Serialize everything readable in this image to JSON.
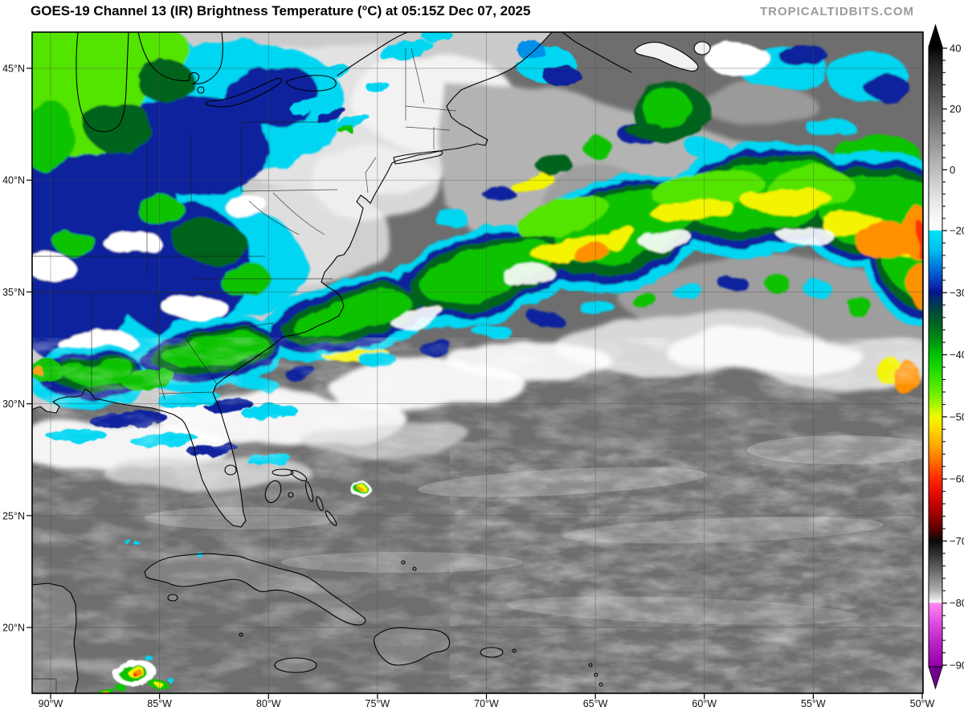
{
  "header": {
    "title": "GOES-19 Channel 13 (IR) Brightness Temperature (°C) at 05:15Z Dec 07, 2025",
    "watermark": "TROPICALTIDBITS.COM"
  },
  "map": {
    "lat_labels": [
      "45°N",
      "40°N",
      "35°N",
      "30°N",
      "25°N",
      "20°N"
    ],
    "lon_labels": [
      "90°W",
      "85°W",
      "80°W",
      "75°W",
      "70°W",
      "65°W",
      "60°W",
      "55°W",
      "50°W"
    ]
  },
  "colorbar": {
    "major_tick_labels": [
      "40",
      "20",
      "0",
      "−20",
      "−30",
      "−40",
      "−50",
      "−60",
      "−70",
      "−80",
      "−90"
    ],
    "major_tick_values": [
      40,
      20,
      0,
      -20,
      -30,
      -40,
      -50,
      -60,
      -70,
      -80,
      -90
    ],
    "gradient": [
      [
        40.5,
        "#000000"
      ],
      [
        36,
        "#1f1f1f"
      ],
      [
        30,
        "#3a3a3a"
      ],
      [
        25,
        "#4f4f4f"
      ],
      [
        20,
        "#646464"
      ],
      [
        15,
        "#7a7a7a"
      ],
      [
        10,
        "#909090"
      ],
      [
        5,
        "#a6a6a6"
      ],
      [
        0,
        "#bcbcbc"
      ],
      [
        -5,
        "#d2d2d2"
      ],
      [
        -10,
        "#e6e6e6"
      ],
      [
        -15,
        "#f5f5f5"
      ],
      [
        -19.9,
        "#ffffff"
      ],
      [
        -20,
        "#00e4f6"
      ],
      [
        -23,
        "#00c0f0"
      ],
      [
        -26,
        "#0072dc"
      ],
      [
        -29,
        "#0a28aa"
      ],
      [
        -30,
        "#061488"
      ],
      [
        -31,
        "#002c6a"
      ],
      [
        -33,
        "#004a3c"
      ],
      [
        -35,
        "#006420"
      ],
      [
        -38,
        "#009612"
      ],
      [
        -40,
        "#00c400"
      ],
      [
        -43,
        "#2ae000"
      ],
      [
        -46,
        "#66ee00"
      ],
      [
        -48,
        "#a6f600"
      ],
      [
        -50,
        "#f0fa00"
      ],
      [
        -52,
        "#ffd800"
      ],
      [
        -55,
        "#ffa000"
      ],
      [
        -57,
        "#ff7000"
      ],
      [
        -60,
        "#ff2800"
      ],
      [
        -62,
        "#e60e00"
      ],
      [
        -65,
        "#af0000"
      ],
      [
        -68,
        "#5c0000"
      ],
      [
        -70,
        "#0a0a0a"
      ],
      [
        -72,
        "#2e2e2e"
      ],
      [
        -75,
        "#6e6e6e"
      ],
      [
        -78,
        "#b0b0b0"
      ],
      [
        -79.9,
        "#f8f8f8"
      ],
      [
        -80,
        "#ff86f2"
      ],
      [
        -83,
        "#e050e0"
      ],
      [
        -86,
        "#bc28c8"
      ],
      [
        -90,
        "#9600aa"
      ],
      [
        -90.3,
        "#7a0090"
      ]
    ]
  },
  "palette": {
    "ocean_warm": "#6e6e6e",
    "ocean_cool": "#b3b3b3",
    "ocean_mid": "#9a9a9a",
    "land_cold": "#cbcbcb",
    "land_lighter": "#e2e2e2",
    "land_white": "#f2f2f2",
    "land_florida": "#8f8f8f",
    "land_tropics": "#818181",
    "cloud_white": "#ffffff",
    "cloud_gray": "#9e9e9e",
    "cloud_light": "#d8d8d8",
    "cyan": "#00d6f2",
    "blue": "#0090e8",
    "navy": "#07239c",
    "green_dark": "#00641e",
    "green": "#11c303",
    "green_bright": "#52e400",
    "yellow": "#f4f400",
    "orange": "#ff9100",
    "red": "#ff3000",
    "coast": "#000000",
    "grid": "#4a4a4a",
    "cbar_arrow_top": "#000000",
    "cbar_arrow_bottom": "#70008c",
    "watermark": "#9b9b9b"
  }
}
